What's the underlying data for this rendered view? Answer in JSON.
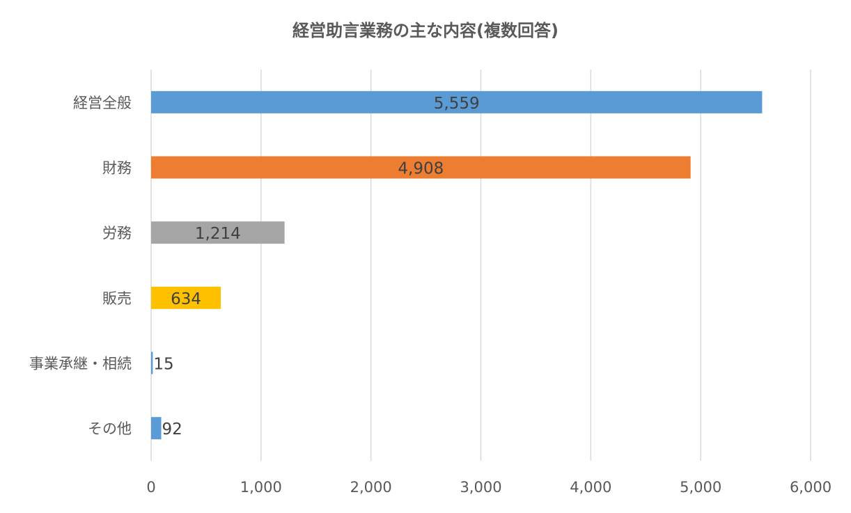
{
  "chart_data": {
    "type": "bar",
    "orientation": "horizontal",
    "title": "経営助言業務の主な内容(複数回答)",
    "xlabel": "",
    "ylabel": "",
    "categories": [
      "経営全般",
      "財務",
      "労務",
      "販売",
      "事業承継・相続",
      "その他"
    ],
    "values": [
      5559,
      4908,
      1214,
      634,
      15,
      92
    ],
    "value_labels": [
      "5,559",
      "4,908",
      "1,214",
      "634",
      "15",
      "92"
    ],
    "bar_colors": [
      "#5B9BD5",
      "#ED7D31",
      "#A5A5A5",
      "#FFC000",
      "#5B9BD5",
      "#5B9BD5"
    ],
    "xlim": [
      0,
      6000
    ],
    "ticks": [
      0,
      1000,
      2000,
      3000,
      4000,
      5000,
      6000
    ],
    "tick_labels": [
      "0",
      "1,000",
      "2,000",
      "3,000",
      "4,000",
      "5,000",
      "6,000"
    ],
    "grid": true,
    "legend": "none"
  }
}
